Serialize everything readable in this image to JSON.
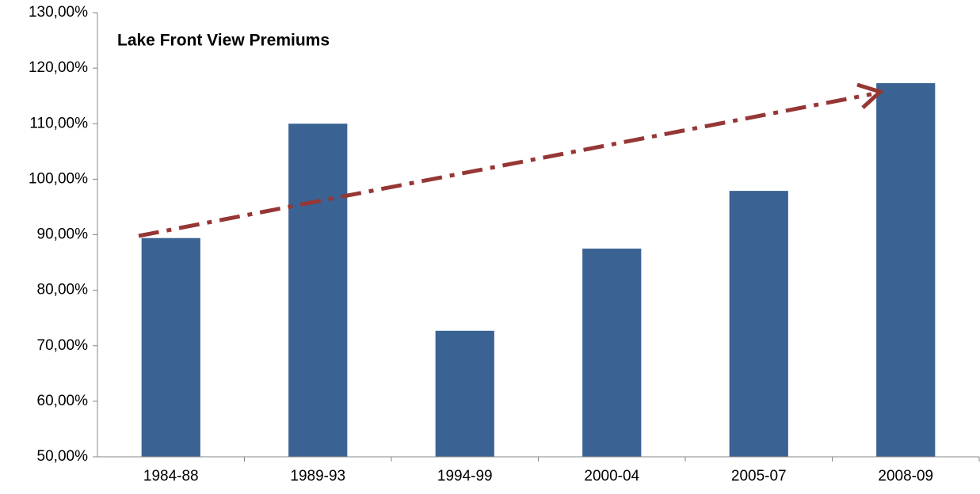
{
  "chart_data": {
    "type": "bar",
    "title": "Lake Front View Premiums",
    "categories": [
      "1984-88",
      "1989-93",
      "1994-99",
      "2000-04",
      "2005-07",
      "2008-09"
    ],
    "values": [
      89.4,
      110.0,
      72.7,
      87.5,
      97.9,
      117.3
    ],
    "color": "#3a6393",
    "ylim": [
      50,
      130
    ],
    "yticks": [
      {
        "value": 50,
        "label": "50,00%"
      },
      {
        "value": 60,
        "label": "60,00%"
      },
      {
        "value": 70,
        "label": "70,00%"
      },
      {
        "value": 80,
        "label": "80,00%"
      },
      {
        "value": 90,
        "label": "90,00%"
      },
      {
        "value": 100,
        "label": "100,00%"
      },
      {
        "value": 110,
        "label": "110,00%"
      },
      {
        "value": 120,
        "label": "120,00%"
      },
      {
        "value": 130,
        "label": "130,00%"
      }
    ],
    "grid": false
  }
}
